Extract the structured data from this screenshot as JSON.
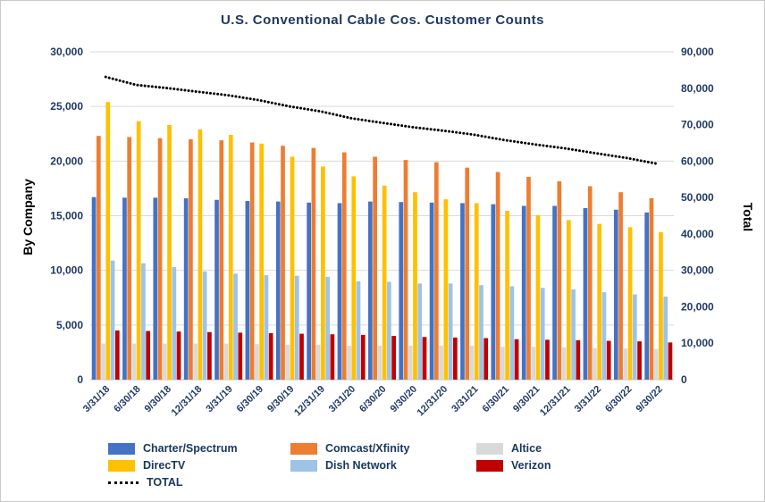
{
  "chart_data": {
    "type": "bar",
    "title": "U.S. Conventional Cable Cos. Customer Counts",
    "left_axis": {
      "label": "By Company",
      "min": 0,
      "max": 30000,
      "tick_step": 5000
    },
    "right_axis": {
      "label": "Total",
      "min": 0,
      "max": 90000,
      "tick_step": 10000
    },
    "grid": true,
    "legend_position": "bottom",
    "categories": [
      "3/31/18",
      "6/30/18",
      "9/30/18",
      "12/31/18",
      "3/31/19",
      "6/30/19",
      "9/30/19",
      "12/31/19",
      "3/31/20",
      "6/30/20",
      "9/30/20",
      "12/31/20",
      "3/31/21",
      "6/30/21",
      "9/30/21",
      "12/31/21",
      "3/31/22",
      "6/30/22",
      "9/30/22"
    ],
    "series": [
      {
        "name": "Charter/Spectrum",
        "type": "bar",
        "axis": "left",
        "color": "#4472C4",
        "values": [
          16700,
          16650,
          16650,
          16600,
          16450,
          16350,
          16300,
          16200,
          16150,
          16300,
          16250,
          16200,
          16150,
          16050,
          15900,
          15900,
          15700,
          15550,
          15300
        ]
      },
      {
        "name": "Comcast/Xfinity",
        "type": "bar",
        "axis": "left",
        "color": "#ED7D31",
        "values": [
          22300,
          22200,
          22100,
          22000,
          21900,
          21700,
          21400,
          21200,
          20800,
          20400,
          20100,
          19900,
          19400,
          19000,
          18550,
          18150,
          17700,
          17150,
          16600
        ]
      },
      {
        "name": "Altice",
        "type": "bar",
        "axis": "left",
        "color": "#D9D9D9",
        "values": [
          3300,
          3300,
          3300,
          3300,
          3300,
          3250,
          3200,
          3200,
          3100,
          3100,
          3100,
          3100,
          3100,
          3000,
          3000,
          2950,
          2900,
          2850,
          2800
        ]
      },
      {
        "name": "DirecTV",
        "type": "bar",
        "axis": "left",
        "color": "#FFC000",
        "values": [
          25400,
          23650,
          23300,
          22900,
          22400,
          21600,
          20400,
          19500,
          18600,
          17750,
          17150,
          16500,
          16150,
          15450,
          15050,
          14600,
          14250,
          13950,
          13500
        ]
      },
      {
        "name": "Dish Network",
        "type": "bar",
        "axis": "left",
        "color": "#9DC3E6",
        "values": [
          10900,
          10650,
          10300,
          9900,
          9700,
          9560,
          9500,
          9400,
          9000,
          8950,
          8800,
          8800,
          8650,
          8550,
          8400,
          8250,
          8000,
          7800,
          7600
        ]
      },
      {
        "name": "Verizon",
        "type": "bar",
        "axis": "left",
        "color": "#C00000",
        "values": [
          4500,
          4450,
          4400,
          4350,
          4300,
          4250,
          4200,
          4150,
          4100,
          4000,
          3900,
          3850,
          3800,
          3700,
          3650,
          3600,
          3550,
          3500,
          3400
        ]
      },
      {
        "name": "TOTAL",
        "type": "dotted-line",
        "axis": "right",
        "color": "#000000",
        "values": [
          83100,
          80900,
          80050,
          79050,
          78050,
          76710,
          75000,
          73650,
          71750,
          70500,
          69300,
          68350,
          67250,
          65750,
          64550,
          63450,
          62100,
          60800,
          59200
        ]
      }
    ]
  },
  "style": {
    "title_color": "#1F3864",
    "tick_label_color": "#1F3864",
    "gridline_color": "#D9D9D9",
    "axis_line_color": "#BFBFBF",
    "legend_text_color": "#17375E"
  }
}
